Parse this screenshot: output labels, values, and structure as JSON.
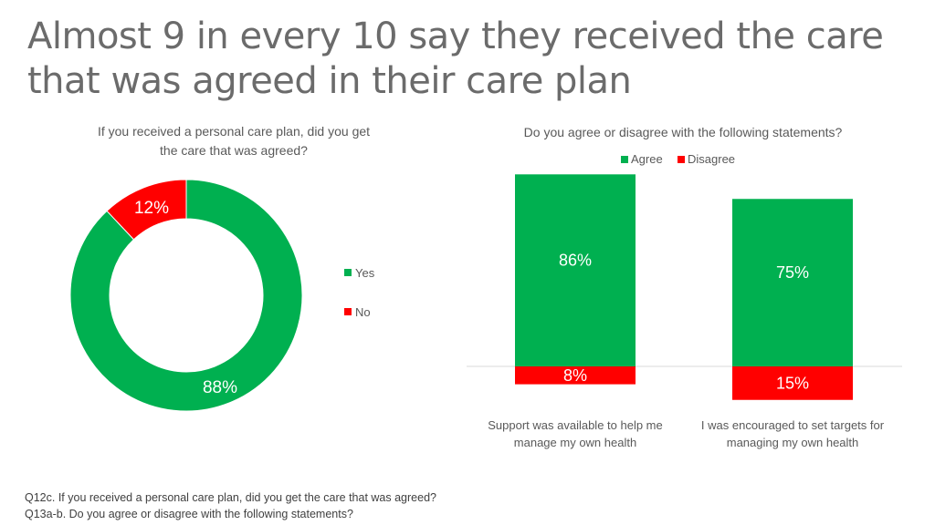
{
  "title_lines": [
    "Almost 9 in every 10 say they received the care",
    "that was agreed in their care plan"
  ],
  "colors": {
    "green": "#00b050",
    "red": "#ff0000",
    "text": "#595959",
    "title": "#6b6b6b"
  },
  "chart_data": [
    {
      "type": "pie",
      "variant": "donut",
      "title_lines": [
        "If you received a personal care plan, did you get",
        "the care that was agreed?"
      ],
      "categories": [
        "Yes",
        "No"
      ],
      "values": [
        88,
        12
      ],
      "labels": [
        "88%",
        "12%"
      ],
      "colors": [
        "#00b050",
        "#ff0000"
      ],
      "legend": [
        "Yes",
        "No"
      ],
      "legend_position": "right"
    },
    {
      "type": "bar",
      "stacked": "diverging",
      "title": "Do you agree or disagree with the following statements?",
      "categories": [
        [
          "Support was available to help me",
          "manage my own health"
        ],
        [
          "I was encouraged to set targets for",
          "managing my own health"
        ]
      ],
      "series": [
        {
          "name": "Agree",
          "values": [
            86,
            75
          ],
          "labels": [
            "86%",
            "75%"
          ],
          "color": "#00b050"
        },
        {
          "name": "Disagree",
          "values": [
            8,
            15
          ],
          "labels": [
            "8%",
            "15%"
          ],
          "color": "#ff0000"
        }
      ],
      "legend_position": "top",
      "grid": false
    }
  ],
  "footnote_lines": [
    "Q12c. If you received a personal care plan, did you get the care that was agreed?",
    "Q13a-b. Do you agree or disagree with the following statements?"
  ]
}
